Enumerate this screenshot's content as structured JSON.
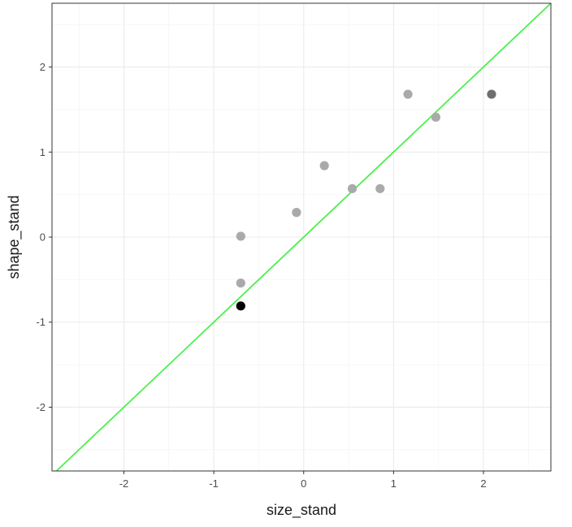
{
  "chart_data": {
    "type": "scatter",
    "title": "",
    "xlabel": "size_stand",
    "ylabel": "shape_stand",
    "xlim": [
      -2.8,
      2.75
    ],
    "ylim": [
      -2.75,
      2.75
    ],
    "x_ticks": [
      -2,
      -1,
      0,
      1,
      2
    ],
    "y_ticks": [
      -2,
      -1,
      0,
      1,
      2
    ],
    "x_tick_labels": [
      "-2",
      "-1",
      "0",
      "1",
      "2"
    ],
    "y_tick_labels": [
      "-2",
      "-1",
      "0",
      "1",
      "2"
    ],
    "grid": true,
    "legend": "none",
    "reference_line": {
      "slope": 1,
      "intercept": 0,
      "color": "#4cf04c"
    },
    "points": [
      {
        "x": -0.7,
        "y": 0.01,
        "color": "#aaaaaa"
      },
      {
        "x": -0.7,
        "y": -0.54,
        "color": "#aaaaaa"
      },
      {
        "x": -0.7,
        "y": -0.81,
        "color": "#000000"
      },
      {
        "x": -0.08,
        "y": 0.29,
        "color": "#aaaaaa"
      },
      {
        "x": 0.23,
        "y": 0.84,
        "color": "#aaaaaa"
      },
      {
        "x": 0.54,
        "y": 0.57,
        "color": "#aaaaaa"
      },
      {
        "x": 0.85,
        "y": 0.57,
        "color": "#aaaaaa"
      },
      {
        "x": 1.16,
        "y": 1.68,
        "color": "#aaaaaa"
      },
      {
        "x": 1.47,
        "y": 1.41,
        "color": "#aaaaaa"
      },
      {
        "x": 2.09,
        "y": 1.68,
        "color": "#6e6e6e"
      }
    ]
  }
}
